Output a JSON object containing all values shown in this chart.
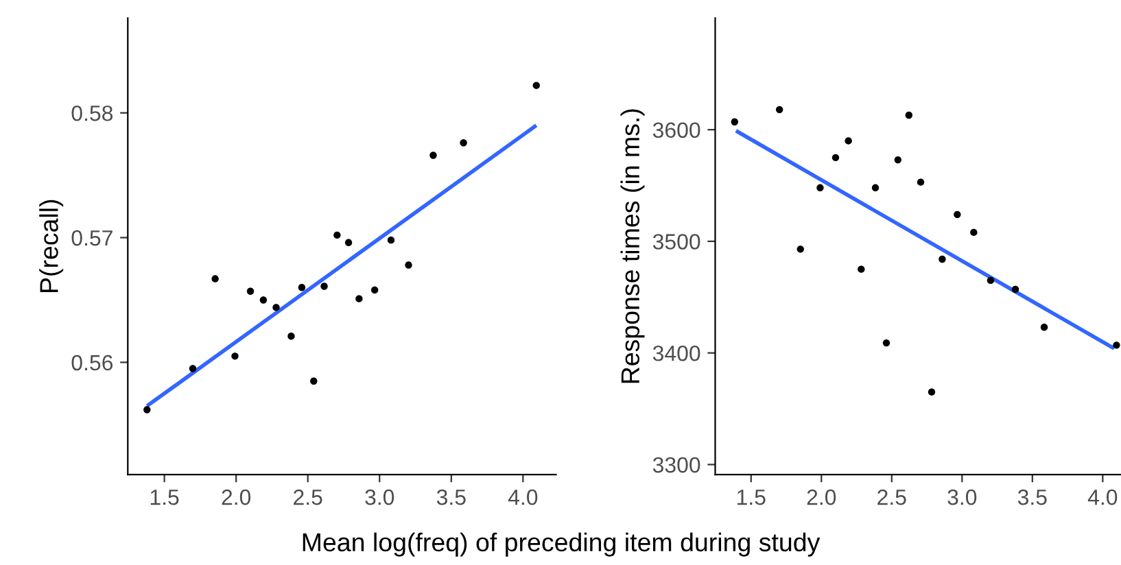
{
  "chart_data": [
    {
      "type": "scatter",
      "ylabel": "P(recall)",
      "xlabel": "Mean log(freq) of preceding item during study",
      "xlim": [
        1.245,
        4.23
      ],
      "ylim": [
        0.551,
        0.5876
      ],
      "xticks": [
        {
          "value": 1.5,
          "label": "1.5"
        },
        {
          "value": 2.0,
          "label": "2.0"
        },
        {
          "value": 2.5,
          "label": "2.5"
        },
        {
          "value": 3.0,
          "label": "3.0"
        },
        {
          "value": 3.5,
          "label": "3.5"
        },
        {
          "value": 4.0,
          "label": "4.0"
        }
      ],
      "yticks": [
        0.56,
        0.57,
        0.58
      ],
      "grid": false,
      "series": [
        {
          "color": "#000000",
          "marker": "circle",
          "x": [
            1.379,
            1.698,
            1.854,
            1.992,
            2.1,
            2.19,
            2.279,
            2.384,
            2.458,
            2.541,
            2.614,
            2.704,
            2.784,
            2.857,
            2.966,
            3.08,
            3.202,
            3.374,
            3.585,
            4.093
          ],
          "values": [
            0.5562,
            0.5595,
            0.5667,
            0.5605,
            0.5657,
            0.565,
            0.5644,
            0.5621,
            0.566,
            0.5585,
            0.5661,
            0.5702,
            0.5696,
            0.5651,
            0.5658,
            0.5698,
            0.5678,
            0.5766,
            0.5776,
            0.5822
          ]
        },
        {
          "type": "line",
          "color": "#3366ff",
          "x": [
            1.379,
            4.093
          ],
          "values": [
            0.5565,
            0.579
          ]
        }
      ]
    },
    {
      "type": "scatter",
      "ylabel": "Response times (in ms.)",
      "xlim": [
        1.245,
        4.13
      ],
      "ylim": [
        3291,
        3700
      ],
      "xticks": [
        {
          "value": 1.5,
          "label": "1.5"
        },
        {
          "value": 2.0,
          "label": "2.0"
        },
        {
          "value": 2.5,
          "label": "2.5"
        },
        {
          "value": 3.0,
          "label": "3.0"
        },
        {
          "value": 3.5,
          "label": "3.5"
        },
        {
          "value": 4.0,
          "label": "4.0"
        }
      ],
      "yticks": [
        3300,
        3400,
        3500,
        3600
      ],
      "grid": false,
      "series": [
        {
          "color": "#000000",
          "marker": "circle",
          "x": [
            1.383,
            1.702,
            1.851,
            1.991,
            2.101,
            2.192,
            2.283,
            2.384,
            2.462,
            2.544,
            2.622,
            2.706,
            2.784,
            2.859,
            2.966,
            3.083,
            3.203,
            3.379,
            3.584,
            4.098
          ],
          "values": [
            3607,
            3618,
            3493,
            3548,
            3575,
            3590,
            3475,
            3548,
            3409,
            3573,
            3613,
            3553,
            3365,
            3484,
            3524,
            3508,
            3465,
            3457,
            3423,
            3407
          ]
        },
        {
          "type": "line",
          "color": "#3366ff",
          "x": [
            1.393,
            4.081
          ],
          "values": [
            3599,
            3404
          ]
        }
      ]
    }
  ]
}
